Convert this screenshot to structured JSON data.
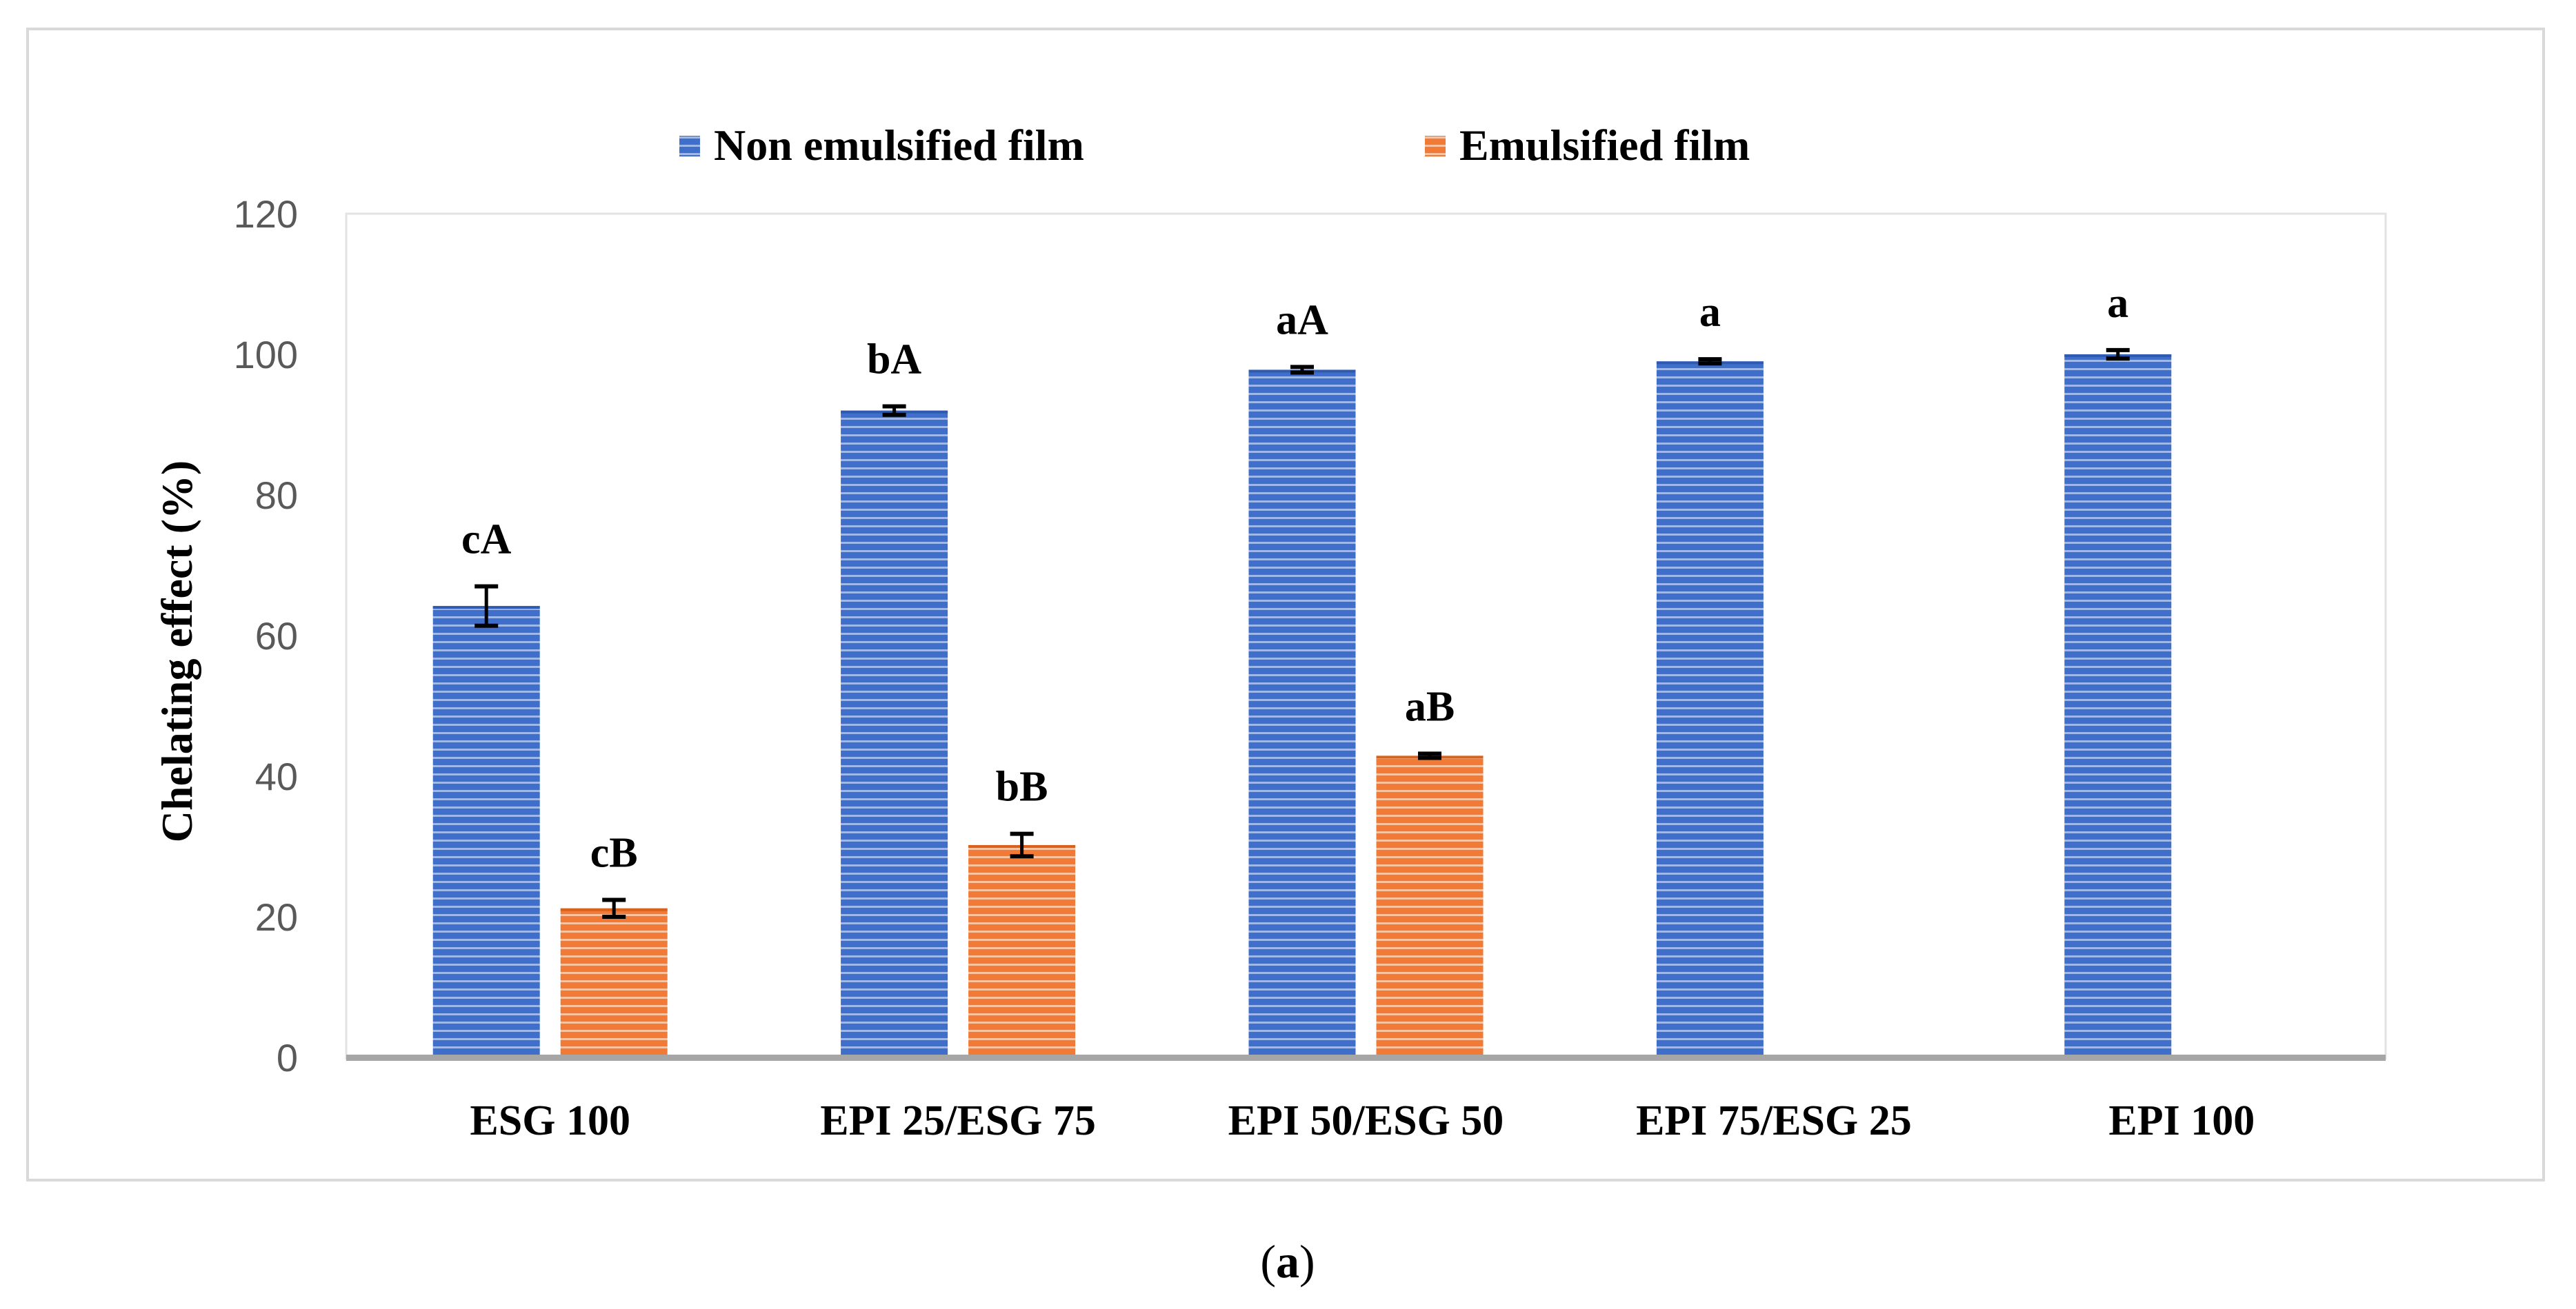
{
  "chart_data": {
    "type": "bar",
    "title": "",
    "xlabel": "",
    "ylabel": "Chelating effect (%)",
    "ylim": [
      0,
      120
    ],
    "yticks": [
      0,
      20,
      40,
      60,
      80,
      100,
      120
    ],
    "categories": [
      "ESG 100",
      "EPI 25/ESG 75",
      "EPI 50/ESG 50",
      "EPI 75/ESG 25",
      "EPI 100"
    ],
    "legend_position": "top",
    "series": [
      {
        "name": "Non emulsified film",
        "color": "#4472C4",
        "values": [
          64.2,
          92.0,
          97.8,
          99.0,
          100.0
        ],
        "errors": [
          2.8,
          0.6,
          0.4,
          0.3,
          0.6
        ],
        "labels": [
          "cA",
          "bA",
          "aA",
          "a",
          "a"
        ]
      },
      {
        "name": "Emulsified film",
        "color": "#ED7D31",
        "values": [
          21.2,
          30.2,
          42.9,
          null,
          null
        ],
        "errors": [
          1.2,
          1.6,
          0.3,
          null,
          null
        ],
        "labels": [
          "cB",
          "bB",
          "aB",
          "",
          ""
        ]
      }
    ]
  },
  "caption": {
    "open": "(",
    "letter": "a",
    "close": ")"
  }
}
